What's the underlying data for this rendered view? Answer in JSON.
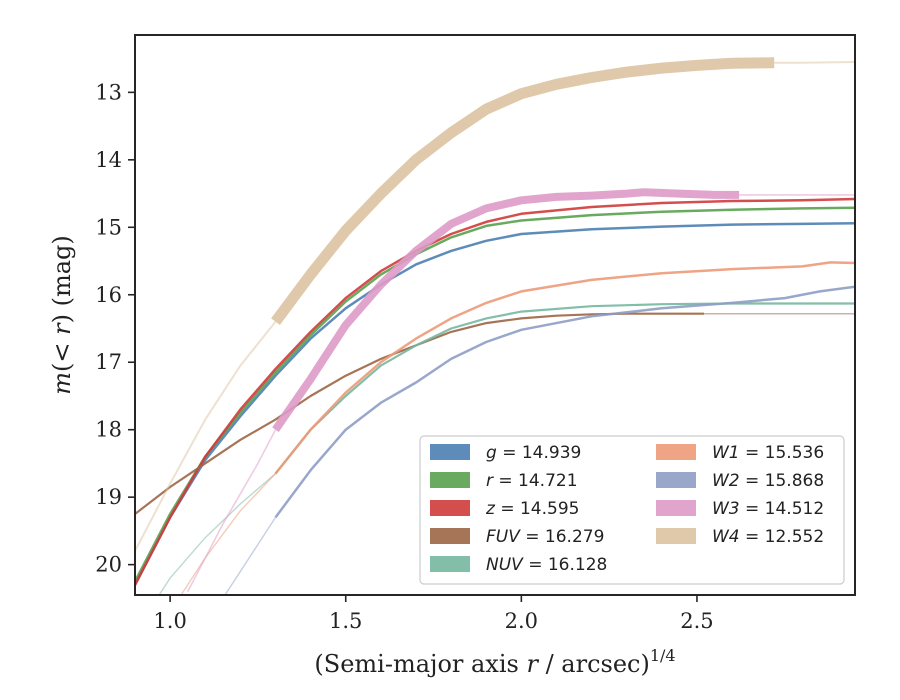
{
  "chart_data": {
    "type": "line",
    "xlabel": "(Semi-major axis r / arcsec)^{1/4}",
    "ylabel": "m(< r) (mag)",
    "xlim": [
      0.9,
      2.95
    ],
    "ylim": [
      20.45,
      12.15
    ],
    "y_inverted": true,
    "grid": false,
    "legend_position": "lower-right",
    "x_ticks": [
      1.0,
      1.5,
      2.0,
      2.5
    ],
    "x_tick_labels": [
      "1.0",
      "1.5",
      "2.0",
      "2.5"
    ],
    "y_ticks": [
      13,
      14,
      15,
      16,
      17,
      18,
      19,
      20
    ],
    "y_tick_labels": [
      "13",
      "14",
      "15",
      "16",
      "17",
      "18",
      "19",
      "20"
    ],
    "series": [
      {
        "name": "g = 14.939",
        "color": "#4c7fb2",
        "width": 2.5,
        "fade_width": 0,
        "x": [
          0.9,
          1.0,
          1.1,
          1.2,
          1.3,
          1.4,
          1.5,
          1.6,
          1.7,
          1.8,
          1.9,
          2.0,
          2.2,
          2.4,
          2.6,
          2.8,
          2.95
        ],
        "y": [
          20.3,
          19.3,
          18.45,
          17.8,
          17.2,
          16.65,
          16.2,
          15.85,
          15.55,
          15.35,
          15.2,
          15.1,
          15.03,
          14.99,
          14.96,
          14.95,
          14.94
        ]
      },
      {
        "name": "r = 14.721",
        "color": "#59a14f",
        "width": 2.5,
        "fade_width": 0,
        "x": [
          0.9,
          1.0,
          1.1,
          1.2,
          1.3,
          1.4,
          1.5,
          1.6,
          1.7,
          1.8,
          1.9,
          2.0,
          2.2,
          2.4,
          2.6,
          2.8,
          2.95
        ],
        "y": [
          20.25,
          19.25,
          18.4,
          17.75,
          17.15,
          16.6,
          16.1,
          15.7,
          15.4,
          15.15,
          14.98,
          14.9,
          14.82,
          14.77,
          14.74,
          14.72,
          14.71
        ]
      },
      {
        "name": "z = 14.595",
        "color": "#d03b3b",
        "width": 2.5,
        "fade_width": 0,
        "x": [
          0.9,
          1.0,
          1.1,
          1.2,
          1.3,
          1.4,
          1.5,
          1.6,
          1.7,
          1.8,
          1.9,
          2.0,
          2.2,
          2.4,
          2.6,
          2.8,
          2.95
        ],
        "y": [
          20.3,
          19.3,
          18.4,
          17.7,
          17.1,
          16.55,
          16.05,
          15.65,
          15.35,
          15.1,
          14.92,
          14.8,
          14.7,
          14.64,
          14.61,
          14.6,
          14.58
        ]
      },
      {
        "name": "FUV = 16.279",
        "color": "#9c6645",
        "width": 2.2,
        "fade_width": 0,
        "fade_end": 2.52,
        "x": [
          0.9,
          1.0,
          1.1,
          1.2,
          1.3,
          1.4,
          1.5,
          1.6,
          1.7,
          1.8,
          1.9,
          2.0,
          2.1,
          2.2,
          2.3,
          2.4,
          2.52,
          2.95
        ],
        "y": [
          19.25,
          18.85,
          18.5,
          18.15,
          17.85,
          17.5,
          17.2,
          16.95,
          16.75,
          16.55,
          16.42,
          16.35,
          16.31,
          16.29,
          16.28,
          16.28,
          16.28,
          16.28
        ]
      },
      {
        "name": "NUV = 16.128",
        "color": "#76b7a0",
        "width": 2.2,
        "fade_width": 1.4,
        "fade_start": 1.3,
        "x": [
          0.95,
          1.0,
          1.1,
          1.2,
          1.3,
          1.4,
          1.5,
          1.6,
          1.7,
          1.8,
          1.9,
          2.0,
          2.2,
          2.4,
          2.6,
          2.8,
          2.95
        ],
        "y": [
          20.6,
          20.2,
          19.6,
          19.1,
          18.65,
          18.0,
          17.5,
          17.05,
          16.75,
          16.5,
          16.35,
          16.25,
          16.17,
          16.14,
          16.13,
          16.13,
          16.13
        ]
      },
      {
        "name": "W1 = 15.536",
        "color": "#ec9a78",
        "width": 2.5,
        "fade_width": 1.4,
        "fade_start": 1.3,
        "x": [
          1.0,
          1.1,
          1.2,
          1.3,
          1.4,
          1.5,
          1.6,
          1.7,
          1.8,
          1.9,
          2.0,
          2.2,
          2.4,
          2.6,
          2.8,
          2.88,
          2.95
        ],
        "y": [
          20.7,
          19.9,
          19.2,
          18.65,
          18.0,
          17.45,
          17.0,
          16.65,
          16.35,
          16.12,
          15.95,
          15.78,
          15.68,
          15.62,
          15.58,
          15.52,
          15.53
        ]
      },
      {
        "name": "W2 = 15.868",
        "color": "#8e9dc5",
        "width": 2.5,
        "fade_width": 1.4,
        "fade_start": 1.3,
        "x": [
          1.15,
          1.2,
          1.3,
          1.4,
          1.5,
          1.6,
          1.7,
          1.8,
          1.9,
          2.0,
          2.2,
          2.4,
          2.6,
          2.75,
          2.85,
          2.95
        ],
        "y": [
          20.5,
          20.1,
          19.3,
          18.6,
          18.0,
          17.6,
          17.3,
          16.95,
          16.7,
          16.52,
          16.32,
          16.2,
          16.12,
          16.05,
          15.95,
          15.88
        ]
      },
      {
        "name": "W3 = 14.512",
        "color": "#de9ac8",
        "width": 8,
        "fade_width": 1.6,
        "fade_start": 1.3,
        "fade_end": 2.62,
        "x": [
          1.05,
          1.15,
          1.25,
          1.3,
          1.4,
          1.5,
          1.6,
          1.7,
          1.8,
          1.9,
          2.0,
          2.1,
          2.2,
          2.3,
          2.35,
          2.45,
          2.55,
          2.62,
          2.8,
          2.95
        ],
        "y": [
          20.4,
          19.4,
          18.5,
          18.0,
          17.25,
          16.45,
          15.85,
          15.35,
          14.95,
          14.72,
          14.6,
          14.55,
          14.53,
          14.5,
          14.48,
          14.5,
          14.52,
          14.52,
          14.52,
          14.52
        ]
      },
      {
        "name": "W4 = 12.552",
        "color": "#dcc3a1",
        "width": 11,
        "fade_width": 2,
        "fade_start": 1.3,
        "fade_end": 2.72,
        "x": [
          0.9,
          1.0,
          1.1,
          1.2,
          1.3,
          1.4,
          1.5,
          1.6,
          1.7,
          1.8,
          1.9,
          2.0,
          2.1,
          2.2,
          2.3,
          2.4,
          2.5,
          2.6,
          2.72,
          2.8,
          2.95
        ],
        "y": [
          19.8,
          18.8,
          17.85,
          17.05,
          16.4,
          15.7,
          15.05,
          14.5,
          14.0,
          13.6,
          13.25,
          13.02,
          12.88,
          12.78,
          12.7,
          12.64,
          12.6,
          12.57,
          12.56,
          12.56,
          12.55
        ]
      }
    ]
  }
}
